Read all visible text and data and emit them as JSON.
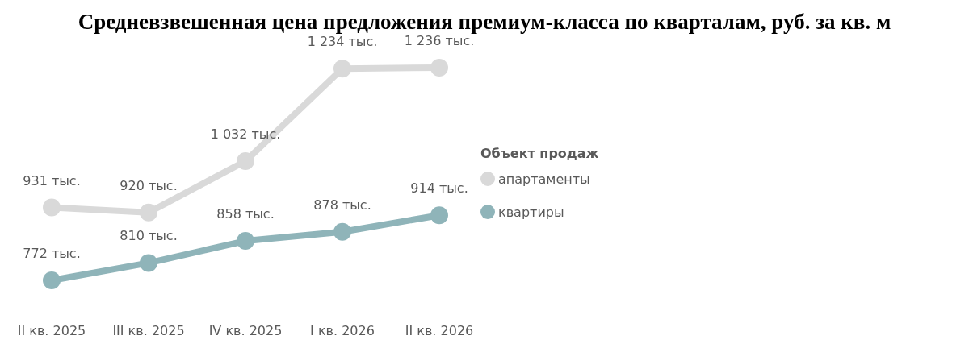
{
  "chart_data": {
    "type": "line",
    "title": "Средневзвешенная цена предложения премиум-класса по кварталам, руб. за кв. м",
    "legend_title": "Объект продаж",
    "categories": [
      "II кв. 2025",
      "III кв. 2025",
      "IV кв. 2025",
      "I кв. 2026",
      "II кв. 2026"
    ],
    "series": [
      {
        "name": "апартаменты",
        "color": "#d9d9d9",
        "values": [
          931,
          920,
          1032,
          1234,
          1236
        ],
        "value_labels": [
          "931 тыс.",
          "920 тыс.",
          "1 032 тыс.",
          "1 234 тыс.",
          "1 236 тыс."
        ]
      },
      {
        "name": "квартиры",
        "color": "#8fb4b9",
        "values": [
          772,
          810,
          858,
          878,
          914
        ],
        "value_labels": [
          "772 тыс.",
          "810 тыс.",
          "858 тыс.",
          "878 тыс.",
          "914 тыс."
        ]
      }
    ],
    "legend": "right",
    "marker": "circle",
    "line_style": "solid"
  }
}
